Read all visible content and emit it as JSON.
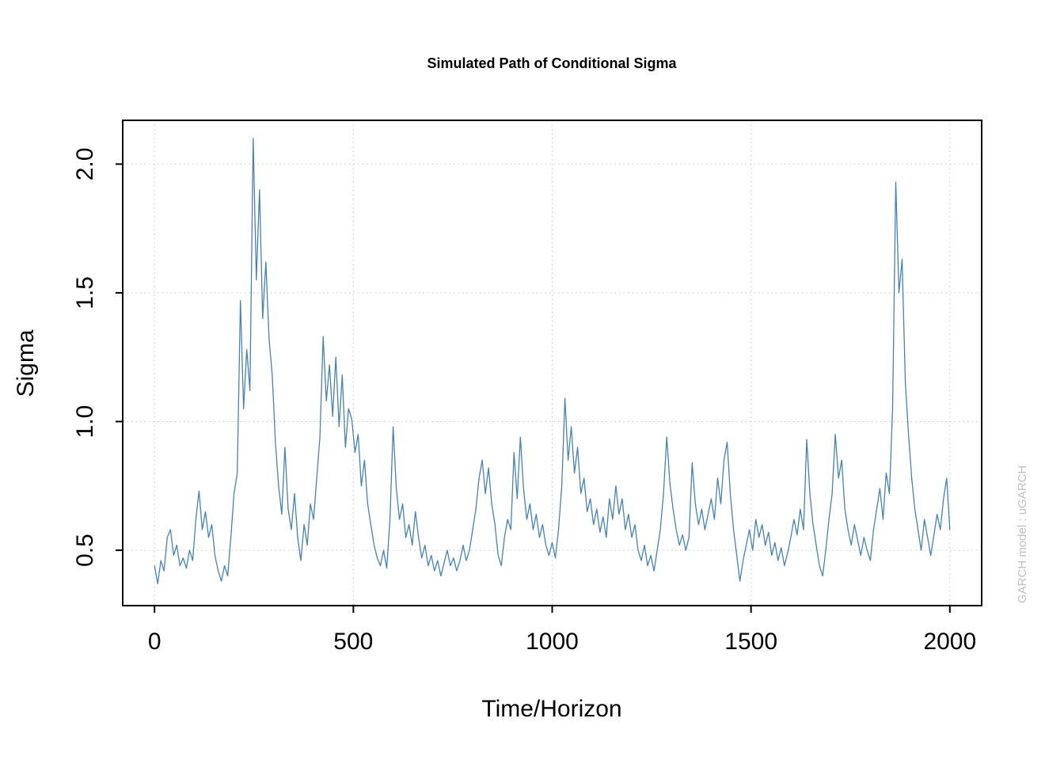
{
  "title": "Simulated Path of Conditional Sigma",
  "watermark": "GARCH model : uGARCH",
  "chart_data": {
    "type": "line",
    "title": "Simulated Path of Conditional Sigma",
    "xlabel": "Time/Horizon",
    "ylabel": "Sigma",
    "x_start": 0,
    "x_step": 8,
    "values": [
      0.44,
      0.37,
      0.46,
      0.42,
      0.55,
      0.58,
      0.48,
      0.52,
      0.44,
      0.47,
      0.43,
      0.5,
      0.46,
      0.62,
      0.73,
      0.58,
      0.65,
      0.55,
      0.6,
      0.48,
      0.42,
      0.38,
      0.44,
      0.4,
      0.55,
      0.72,
      0.8,
      1.47,
      1.05,
      1.28,
      1.12,
      2.1,
      1.55,
      1.9,
      1.4,
      1.62,
      1.32,
      1.18,
      0.92,
      0.75,
      0.64,
      0.9,
      0.66,
      0.58,
      0.72,
      0.55,
      0.46,
      0.6,
      0.52,
      0.68,
      0.62,
      0.78,
      0.94,
      1.33,
      1.08,
      1.22,
      1.02,
      1.25,
      0.98,
      1.18,
      0.9,
      1.05,
      1.01,
      0.88,
      0.95,
      0.75,
      0.85,
      0.68,
      0.6,
      0.52,
      0.47,
      0.44,
      0.5,
      0.43,
      0.62,
      0.98,
      0.74,
      0.62,
      0.68,
      0.55,
      0.6,
      0.52,
      0.65,
      0.55,
      0.47,
      0.52,
      0.44,
      0.48,
      0.42,
      0.46,
      0.4,
      0.45,
      0.5,
      0.44,
      0.47,
      0.42,
      0.46,
      0.52,
      0.46,
      0.5,
      0.58,
      0.66,
      0.78,
      0.85,
      0.72,
      0.82,
      0.68,
      0.6,
      0.48,
      0.44,
      0.55,
      0.62,
      0.58,
      0.88,
      0.7,
      0.94,
      0.74,
      0.62,
      0.68,
      0.58,
      0.64,
      0.55,
      0.6,
      0.52,
      0.48,
      0.53,
      0.47,
      0.58,
      0.75,
      1.09,
      0.85,
      0.98,
      0.8,
      0.9,
      0.72,
      0.78,
      0.65,
      0.7,
      0.6,
      0.66,
      0.57,
      0.63,
      0.55,
      0.7,
      0.62,
      0.75,
      0.64,
      0.7,
      0.58,
      0.64,
      0.55,
      0.6,
      0.5,
      0.46,
      0.52,
      0.44,
      0.48,
      0.42,
      0.5,
      0.58,
      0.72,
      0.94,
      0.76,
      0.66,
      0.58,
      0.52,
      0.56,
      0.5,
      0.55,
      0.84,
      0.68,
      0.6,
      0.66,
      0.58,
      0.64,
      0.7,
      0.62,
      0.78,
      0.68,
      0.85,
      0.92,
      0.72,
      0.58,
      0.48,
      0.38,
      0.46,
      0.52,
      0.58,
      0.5,
      0.62,
      0.55,
      0.6,
      0.52,
      0.57,
      0.48,
      0.53,
      0.46,
      0.51,
      0.44,
      0.49,
      0.55,
      0.62,
      0.56,
      0.66,
      0.58,
      0.93,
      0.72,
      0.6,
      0.52,
      0.44,
      0.4,
      0.5,
      0.62,
      0.72,
      0.95,
      0.78,
      0.85,
      0.66,
      0.58,
      0.52,
      0.6,
      0.54,
      0.48,
      0.55,
      0.5,
      0.46,
      0.58,
      0.66,
      0.74,
      0.62,
      0.8,
      0.72,
      1.05,
      1.93,
      1.5,
      1.63,
      1.15,
      0.95,
      0.78,
      0.66,
      0.58,
      0.5,
      0.62,
      0.55,
      0.48,
      0.56,
      0.64,
      0.58,
      0.7,
      0.78,
      0.58
    ],
    "xticks": [
      0,
      500,
      1000,
      1500,
      2000
    ],
    "yticks": [
      0.5,
      1.0,
      1.5,
      2.0
    ],
    "xtick_labels": [
      "0",
      "500",
      "1000",
      "1500",
      "2000"
    ],
    "ytick_labels": [
      "0.5",
      "1.0",
      "1.5",
      "2.0"
    ],
    "xlim": [
      -80,
      2080
    ],
    "ylim": [
      0.285,
      2.17
    ],
    "line_color": "#4682B4",
    "grid": true,
    "grid_color": "#C6C6C6",
    "axis_color": "#000000",
    "watermark_color": "#BFBFBF",
    "legend": "none"
  }
}
